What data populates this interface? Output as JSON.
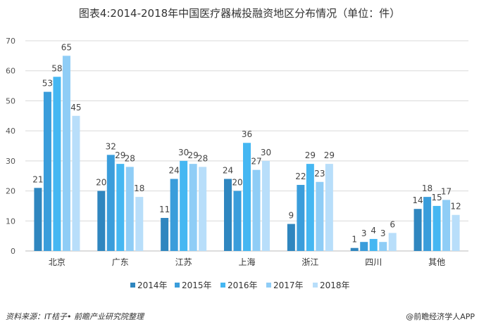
{
  "chart_data": {
    "type": "bar",
    "title": "图表4:2014-2018年中国医疗器械投融资地区分布情况（单位：件）",
    "categories": [
      "北京",
      "广东",
      "江苏",
      "上海",
      "浙江",
      "四川",
      "其他"
    ],
    "series": [
      {
        "name": "2014年",
        "color": "#2f86bf",
        "values": [
          21,
          20,
          11,
          24,
          9,
          1,
          14
        ]
      },
      {
        "name": "2015年",
        "color": "#3a9ddb",
        "values": [
          53,
          32,
          24,
          20,
          22,
          3,
          18
        ]
      },
      {
        "name": "2016年",
        "color": "#45b7f2",
        "values": [
          58,
          29,
          30,
          36,
          29,
          4,
          15
        ]
      },
      {
        "name": "2017年",
        "color": "#8fcdf6",
        "values": [
          65,
          28,
          29,
          27,
          23,
          3,
          17
        ]
      },
      {
        "name": "2018年",
        "color": "#b8defa",
        "values": [
          45,
          18,
          28,
          30,
          29,
          6,
          12
        ]
      }
    ],
    "ylim": [
      0,
      70
    ],
    "yticks": [
      0,
      10,
      20,
      30,
      40,
      50,
      60,
      70
    ],
    "grid": true,
    "legend": "bottom"
  },
  "footer": {
    "source": "资料来源：IT桔子• 前瞻产业研究院整理",
    "brand": "@前瞻经济学人APP"
  }
}
